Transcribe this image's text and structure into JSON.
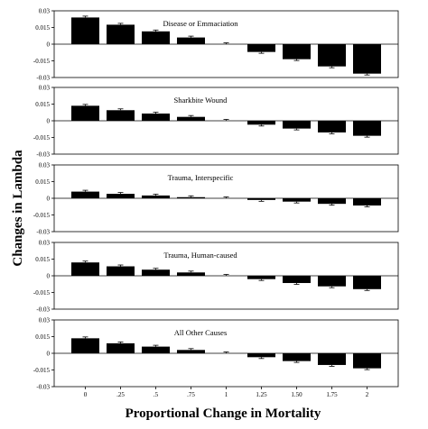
{
  "chart_data": {
    "type": "bar",
    "ylabel": "Changes in Lambda",
    "xlabel": "Proportional Change in Mortality",
    "categories": [
      "0",
      ".25",
      ".5",
      ".75",
      "1",
      "1.25",
      "1.50",
      "1.75",
      "2"
    ],
    "yticks": [
      "0.03",
      "0.015",
      "0",
      "-0.015",
      "-0.03"
    ],
    "ylim": [
      -0.03,
      0.03
    ],
    "grid": false,
    "bar_color": "#000000",
    "panels": [
      {
        "title": "Disease or Emmaciation",
        "values": [
          0.024,
          0.0175,
          0.0115,
          0.006,
          0.0,
          -0.007,
          -0.0135,
          -0.02,
          -0.0265
        ]
      },
      {
        "title": "Sharkbite Wound",
        "values": [
          0.0135,
          0.0095,
          0.0065,
          0.0035,
          0.0,
          -0.0035,
          -0.007,
          -0.0105,
          -0.0135
        ]
      },
      {
        "title": "Trauma, Interspecific",
        "values": [
          0.006,
          0.004,
          0.0025,
          0.001,
          0.0,
          -0.0015,
          -0.003,
          -0.005,
          -0.0065
        ]
      },
      {
        "title": "Trauma, Human-caused",
        "values": [
          0.012,
          0.0085,
          0.0055,
          0.003,
          0.0,
          -0.003,
          -0.0065,
          -0.0095,
          -0.012
        ]
      },
      {
        "title": "All Other Causes",
        "values": [
          0.0135,
          0.009,
          0.006,
          0.003,
          0.0,
          -0.0035,
          -0.007,
          -0.0105,
          -0.0135
        ]
      }
    ]
  }
}
